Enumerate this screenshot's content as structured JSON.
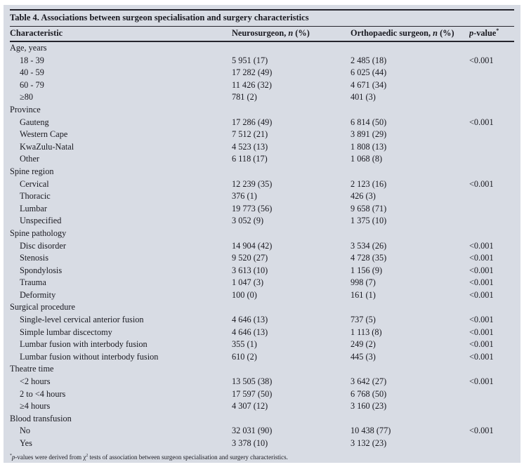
{
  "page": {
    "background": "#ffffff"
  },
  "table": {
    "title": "Table 4. Associations between surgeon specialisation and surgery characteristics",
    "shade_color": "#d8dce4",
    "rule_color": "#25252d",
    "text_color": "#191920",
    "columns": {
      "characteristic": "Characteristic",
      "neurosurgeon": {
        "pre": "Neurosurgeon, ",
        "italic": "n",
        "post": " (%)"
      },
      "orthopaedic": {
        "pre": "Orthopaedic surgeon, ",
        "italic": "n",
        "post": " (%)"
      },
      "pvalue": {
        "italic": "p",
        "post": "-value",
        "sup": "*"
      }
    },
    "sections": [
      {
        "label": "Age, years",
        "rows": [
          {
            "label": "18 - 39",
            "neuro": "5 951 (17)",
            "ortho": "2 485 (18)",
            "p": "<0.001"
          },
          {
            "label": "40 - 59",
            "neuro": "17 282 (49)",
            "ortho": "6 025 (44)",
            "p": ""
          },
          {
            "label": "60 - 79",
            "neuro": "11 426 (32)",
            "ortho": "4 671 (34)",
            "p": ""
          },
          {
            "label": "≥80",
            "neuro": "781 (2)",
            "ortho": "401 (3)",
            "p": ""
          }
        ]
      },
      {
        "label": "Province",
        "rows": [
          {
            "label": "Gauteng",
            "neuro": "17 286 (49)",
            "ortho": "6 814 (50)",
            "p": "<0.001"
          },
          {
            "label": "Western Cape",
            "neuro": "7 512 (21)",
            "ortho": "3 891 (29)",
            "p": ""
          },
          {
            "label": "KwaZulu-Natal",
            "neuro": "4 523 (13)",
            "ortho": "1 808 (13)",
            "p": ""
          },
          {
            "label": "Other",
            "neuro": "6 118 (17)",
            "ortho": "1 068 (8)",
            "p": ""
          }
        ]
      },
      {
        "label": "Spine region",
        "rows": [
          {
            "label": "Cervical",
            "neuro": "12 239 (35)",
            "ortho": "2 123 (16)",
            "p": "<0.001"
          },
          {
            "label": "Thoracic",
            "neuro": "376 (1)",
            "ortho": "426 (3)",
            "p": ""
          },
          {
            "label": "Lumbar",
            "neuro": "19 773 (56)",
            "ortho": "9 658 (71)",
            "p": ""
          },
          {
            "label": "Unspecified",
            "neuro": "3 052 (9)",
            "ortho": "1 375 (10)",
            "p": ""
          }
        ]
      },
      {
        "label": "Spine pathology",
        "rows": [
          {
            "label": "Disc disorder",
            "neuro": "14 904 (42)",
            "ortho": "3 534 (26)",
            "p": "<0.001"
          },
          {
            "label": "Stenosis",
            "neuro": "9 520 (27)",
            "ortho": "4 728 (35)",
            "p": "<0.001"
          },
          {
            "label": "Spondylosis",
            "neuro": "3 613 (10)",
            "ortho": "1 156 (9)",
            "p": "<0.001"
          },
          {
            "label": "Trauma",
            "neuro": "1 047 (3)",
            "ortho": "998 (7)",
            "p": "<0.001"
          },
          {
            "label": "Deformity",
            "neuro": "100 (0)",
            "ortho": "161 (1)",
            "p": "<0.001"
          }
        ]
      },
      {
        "label": "Surgical procedure",
        "rows": [
          {
            "label": "Single-level cervical anterior fusion",
            "neuro": "4 646 (13)",
            "ortho": "737 (5)",
            "p": "<0.001"
          },
          {
            "label": "Simple lumbar discectomy",
            "neuro": "4 646 (13)",
            "ortho": "1 113 (8)",
            "p": "<0.001"
          },
          {
            "label": "Lumbar fusion with interbody fusion",
            "neuro": "355 (1)",
            "ortho": "249 (2)",
            "p": "<0.001"
          },
          {
            "label": "Lumbar fusion without interbody fusion",
            "neuro": "610 (2)",
            "ortho": "445 (3)",
            "p": "<0.001"
          }
        ]
      },
      {
        "label": "Theatre time",
        "rows": [
          {
            "label": "<2 hours",
            "neuro": "13 505 (38)",
            "ortho": "3 642 (27)",
            "p": "<0.001"
          },
          {
            "label": "2 to <4 hours",
            "neuro": "17 597 (50)",
            "ortho": "6 768 (50)",
            "p": ""
          },
          {
            "label": "≥4 hours",
            "neuro": "4 307 (12)",
            "ortho": "3 160 (23)",
            "p": ""
          }
        ]
      },
      {
        "label": "Blood transfusion",
        "rows": [
          {
            "label": "No",
            "neuro": "32 031 (90)",
            "ortho": "10 438 (77)",
            "p": "<0.001"
          },
          {
            "label": "Yes",
            "neuro": "3 378 (10)",
            "ortho": "3 132 (23)",
            "p": ""
          }
        ]
      }
    ],
    "footnote": {
      "sup1": "*",
      "italic": "p",
      "text1": "-values were derived from χ",
      "sup2": "2",
      "text2": " tests of association between surgeon specialisation and surgery characteristics."
    }
  }
}
